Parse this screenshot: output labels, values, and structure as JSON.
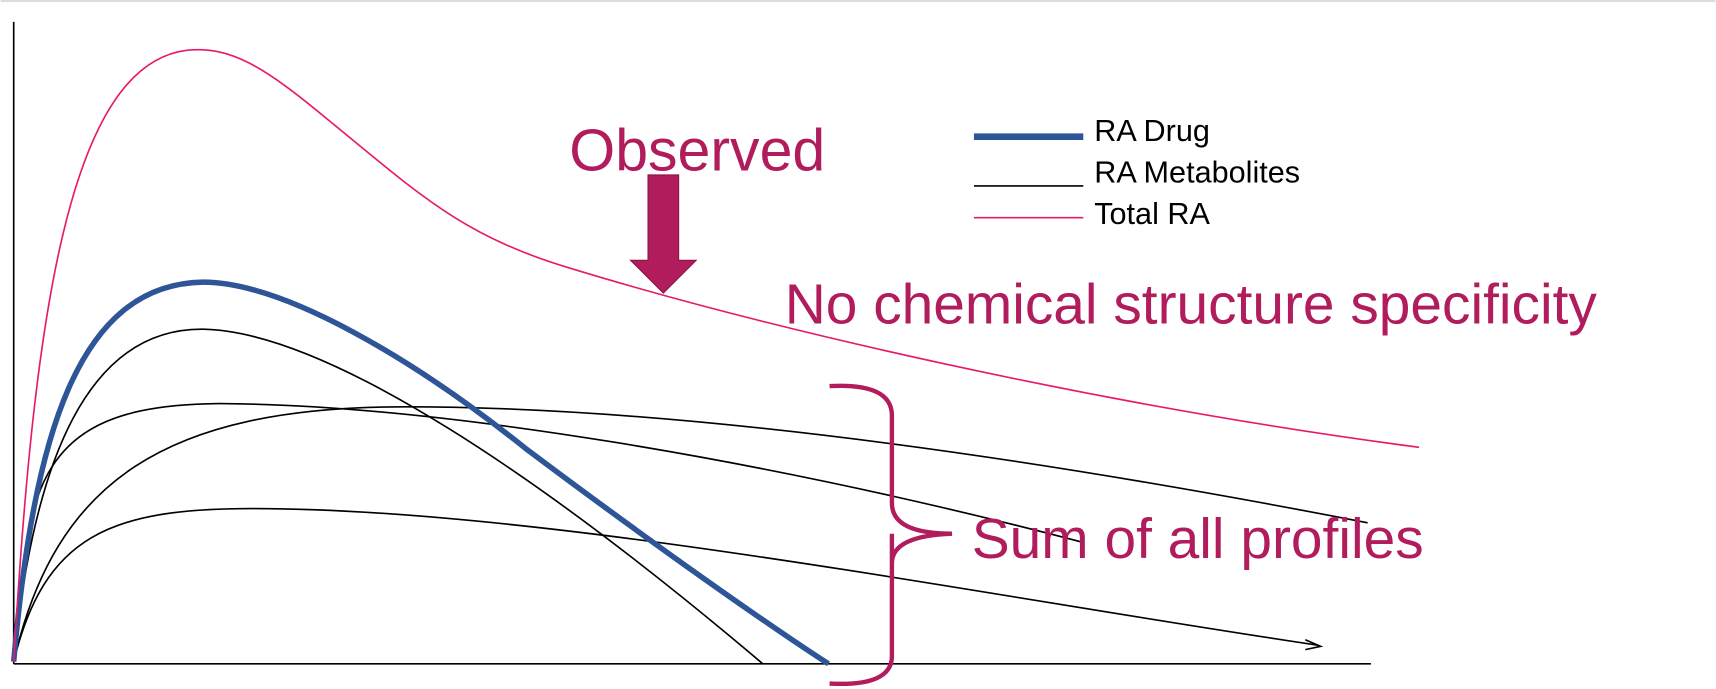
{
  "legend": [
    {
      "label": "RA Drug"
    },
    {
      "label": "RA Metabolites"
    },
    {
      "label": "Total RA"
    }
  ],
  "annotations": {
    "observed": "Observed",
    "specificity": "No chemical structure specificity",
    "sum": "Sum of all profiles"
  }
}
